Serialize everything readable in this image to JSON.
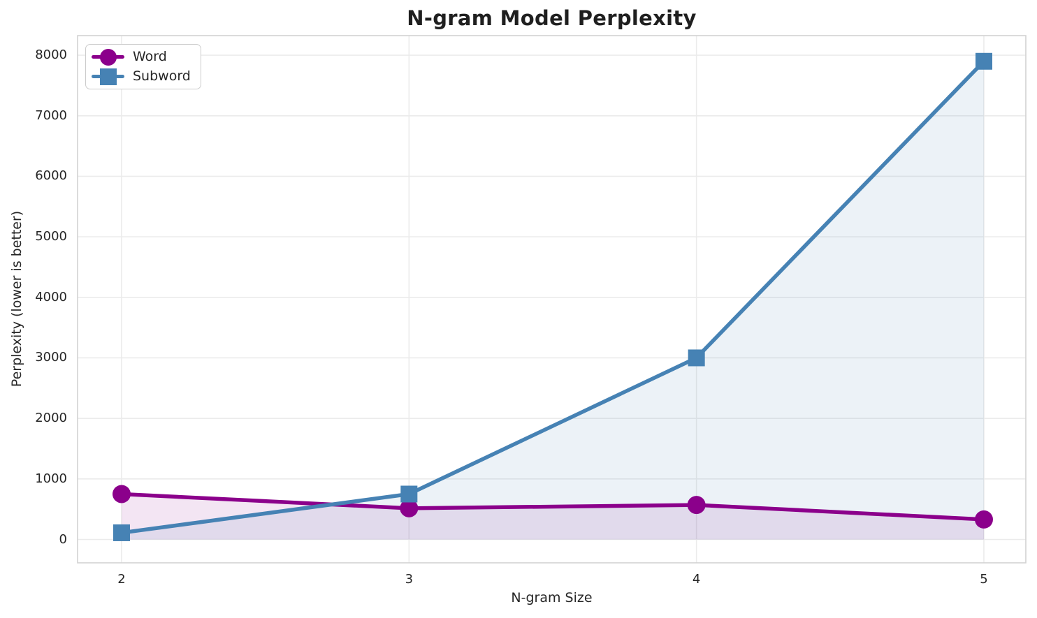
{
  "page": {
    "background": "#ffffff"
  },
  "chart_data": {
    "type": "line",
    "title": "N-gram Model Perplexity",
    "xlabel": "N-gram Size",
    "ylabel": "Perplexity (lower is better)",
    "x": [
      2,
      3,
      4,
      5
    ],
    "series": [
      {
        "name": "Word",
        "values": [
          750,
          515,
          570,
          330
        ],
        "color": "#8B008B",
        "marker": "circle",
        "fill_opacity": 0.1
      },
      {
        "name": "Subword",
        "values": [
          110,
          750,
          3000,
          7900
        ],
        "color": "#4682B4",
        "marker": "square",
        "fill_opacity": 0.1
      }
    ],
    "xticks": [
      2,
      3,
      4,
      5
    ],
    "yticks": [
      0,
      1000,
      2000,
      3000,
      4000,
      5000,
      6000,
      7000,
      8000
    ],
    "xlim": [
      1.85,
      5.15
    ],
    "ylim": [
      -400,
      8320
    ],
    "grid": true,
    "area_fill_to_zero": true,
    "legend_position": "upper left",
    "colors": {
      "grid": "#ebebeb",
      "spine": "#d2d2d2",
      "text": "#262626",
      "legend_border": "#cccccc"
    }
  }
}
